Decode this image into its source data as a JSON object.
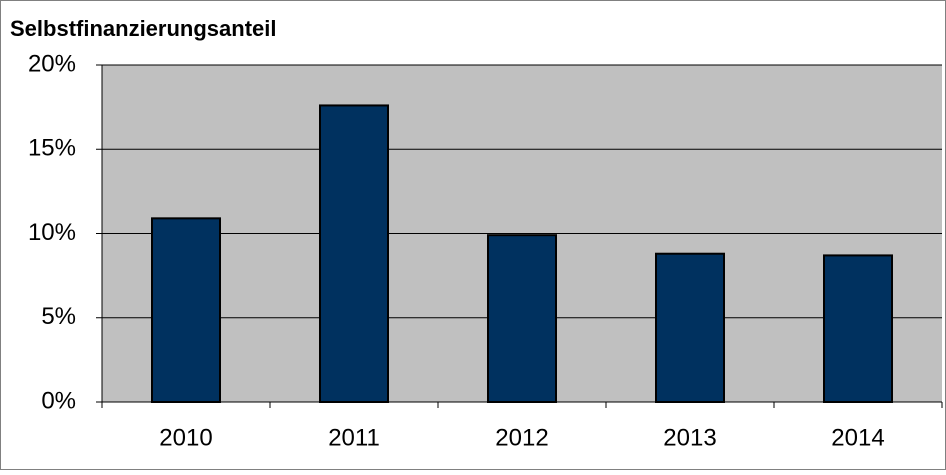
{
  "chart_data": {
    "type": "bar",
    "title": "Selbstfinanzierungsanteil",
    "categories": [
      "2010",
      "2011",
      "2012",
      "2013",
      "2014"
    ],
    "values": [
      10.9,
      17.6,
      9.9,
      8.8,
      8.7
    ],
    "color": "#00315f",
    "plot_background": "#c0c0c0",
    "ylim": [
      0,
      20
    ],
    "yticks": [
      {
        "value": 0,
        "label": "0%"
      },
      {
        "value": 5,
        "label": "5%"
      },
      {
        "value": 10,
        "label": "10%"
      },
      {
        "value": 15,
        "label": "15%"
      },
      {
        "value": 20,
        "label": "20%"
      }
    ],
    "grid": true
  }
}
